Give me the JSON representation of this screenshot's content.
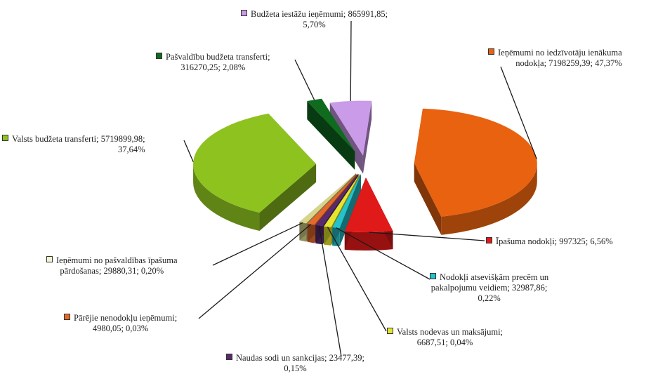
{
  "chart_data": {
    "type": "pie",
    "title": "",
    "style": "3d-exploded",
    "series": [
      {
        "name": "Ieņēmumi no iedzīvotāju ienākuma nodokļa",
        "value": 7198259.39,
        "percent": "47,37%",
        "value_label": "7198259,39",
        "color": "#E8620F"
      },
      {
        "name": "Īpašuma nodokļi",
        "value": 997325,
        "percent": "6,56%",
        "value_label": "997325",
        "color": "#E01919"
      },
      {
        "name": "Nodokļi atsevišķām precēm un pakalpojumu veidiem",
        "value": 32987.86,
        "percent": "0,22%",
        "value_label": "32987,86",
        "color": "#25C2CC"
      },
      {
        "name": "Valsts nodevas un maksājumi",
        "value": 6687.51,
        "percent": "0,04%",
        "value_label": "6687,51",
        "color": "#E6E62E"
      },
      {
        "name": "Naudas sodi un sankcijas",
        "value": 23477.39,
        "percent": "0,15%",
        "value_label": "23477,39",
        "color": "#5A2A6E"
      },
      {
        "name": "Pārējie nenodokļu ieņēmumi",
        "value": 4980.05,
        "percent": "0,03%",
        "value_label": "4980,05",
        "color": "#E56A2A"
      },
      {
        "name": "Ieņēmumi no pašvaldības īpašuma pārdošanas",
        "value": 29880.31,
        "percent": "0,20%",
        "value_label": "29880,31",
        "color": "#D8D48A"
      },
      {
        "name": "Valsts budžeta transferti",
        "value": 5719899.98,
        "percent": "37,64%",
        "value_label": "5719899,98",
        "color": "#8DC21F"
      },
      {
        "name": "Pašvaldību budžeta transferti",
        "value": 316270.25,
        "percent": "2,08%",
        "value_label": "316270,25",
        "color": "#0F6B1E"
      },
      {
        "name": "Budžeta iestāžu ieņēmumi",
        "value": 865991.85,
        "percent": "5,70%",
        "value_label": "865991,85",
        "color": "#C99BE8"
      }
    ]
  },
  "labels": {
    "iin": {
      "line1": "Ieņēmumi no iedzīvotāju ienākuma",
      "line2": "nodokļa; 7198259,39; 47,37%"
    },
    "ipasuma": {
      "line1": "Īpašuma nodokļi; 997325; 6,56%"
    },
    "atsevisk": {
      "line1": "Nodokļi atsevišķām precēm un",
      "line2": "pakalpojumu veidiem; 32987,86;",
      "line3": "0,22%"
    },
    "nodevas": {
      "line1": "Valsts nodevas un maksājumi;",
      "line2": "6687,51; 0,04%"
    },
    "sodi": {
      "line1": "Naudas sodi un sankcijas; 23477,39;",
      "line2": "0,15%"
    },
    "parejie": {
      "line1": "Pārējie nenodokļu ieņēmumi;",
      "line2": "4980,05; 0,03%"
    },
    "ipasums_pard": {
      "line1": "Ieņēmumi no pašvaldības  īpašuma",
      "line2": "pārdošanas;  29880,31; 0,20%"
    },
    "vbt": {
      "line1": "Valsts budžeta transferti; 5719899,98;",
      "line2": "37,64%"
    },
    "pbt": {
      "line1": "Pašvaldību budžeta transferti;",
      "line2": "316270,25; 2,08%"
    },
    "bii": {
      "line1": "Budžeta iestāžu ieņēmumi; 865991,85;",
      "line2": "5,70%"
    }
  }
}
